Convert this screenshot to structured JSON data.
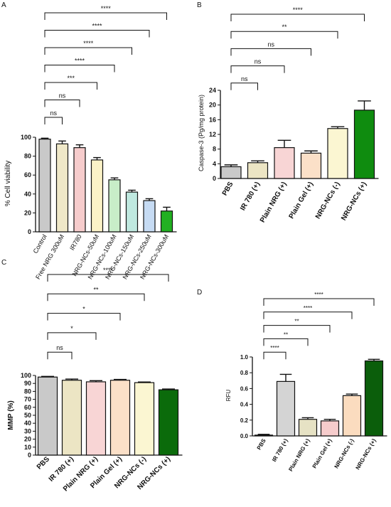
{
  "chart_data": [
    {
      "panel": "A",
      "type": "bar",
      "ylabel": "% Cell viability",
      "ylim": [
        0,
        100
      ],
      "yticks": [
        0,
        20,
        40,
        60,
        80,
        100
      ],
      "categories": [
        "Control",
        "Free NRG 300uM",
        "IR780",
        "NRG-NCs-50uM",
        "NRG-NCs-100uM",
        "NRG-NCs-150uM",
        "NRG-NCs-250uM",
        "NRG-NCs-300uM"
      ],
      "values": [
        98,
        93,
        89,
        76,
        55,
        42,
        33,
        22
      ],
      "errors": [
        1,
        3,
        3,
        2.5,
        2,
        2,
        2,
        4
      ],
      "colors": [
        "#c9c9c9",
        "#efe8c8",
        "#f6cccc",
        "#fbf2c7",
        "#c8edc8",
        "#bfe8df",
        "#c6dbf3",
        "#22b022"
      ],
      "comparisons": [
        {
          "from": 0,
          "to": 1,
          "label": "ns"
        },
        {
          "from": 0,
          "to": 2,
          "label": "ns"
        },
        {
          "from": 0,
          "to": 3,
          "label": "***"
        },
        {
          "from": 0,
          "to": 4,
          "label": "****"
        },
        {
          "from": 0,
          "to": 5,
          "label": "****"
        },
        {
          "from": 0,
          "to": 6,
          "label": "****"
        },
        {
          "from": 0,
          "to": 7,
          "label": "****"
        }
      ]
    },
    {
      "panel": "B",
      "type": "bar",
      "ylabel": "Caspase-3 (Pg/mg protein)",
      "ylim": [
        0,
        24
      ],
      "yticks": [
        0,
        4,
        8,
        12,
        16,
        20,
        24
      ],
      "categories": [
        "PBS",
        "IR 780 (+)",
        "Plain NRG (+)",
        "Plain Gel (+)",
        "NRG-NCs (-)",
        "NRG-NCs (+)"
      ],
      "values": [
        3.2,
        4.3,
        8.4,
        6.9,
        13.6,
        18.6
      ],
      "errors": [
        0.5,
        0.5,
        2.0,
        0.6,
        0.5,
        2.5
      ],
      "colors": [
        "#c9c9c9",
        "#ece5c4",
        "#f8d5d5",
        "#fbe0c8",
        "#fbf6d2",
        "#0f8c0f"
      ],
      "comparisons": [
        {
          "from": 0,
          "to": 1,
          "label": "ns"
        },
        {
          "from": 0,
          "to": 2,
          "label": "ns"
        },
        {
          "from": 0,
          "to": 3,
          "label": "ns"
        },
        {
          "from": 0,
          "to": 4,
          "label": "**"
        },
        {
          "from": 0,
          "to": 5,
          "label": "****"
        }
      ]
    },
    {
      "panel": "C",
      "type": "bar",
      "ylabel": "MMP (%)",
      "ylim": [
        0,
        100
      ],
      "yticks": [
        0,
        10,
        20,
        30,
        40,
        50,
        60,
        70,
        80,
        90,
        100
      ],
      "categories": [
        "PBS",
        "IR 780 (+)",
        "Plain NRG (+)",
        "Plain Gel (+)",
        "NRG-NCs (-)",
        "NRG-NCs (+)"
      ],
      "values": [
        98,
        94,
        92,
        94,
        91,
        82
      ],
      "errors": [
        0.8,
        1.5,
        1.5,
        1,
        0.8,
        1
      ],
      "colors": [
        "#c9c9c9",
        "#ece5c4",
        "#f8d5d5",
        "#fbe0c8",
        "#fbf6d2",
        "#0b6b0b"
      ],
      "comparisons": [
        {
          "from": 0,
          "to": 1,
          "label": "ns"
        },
        {
          "from": 0,
          "to": 2,
          "label": "*"
        },
        {
          "from": 0,
          "to": 3,
          "label": "*"
        },
        {
          "from": 0,
          "to": 4,
          "label": "**"
        },
        {
          "from": 0,
          "to": 5,
          "label": "****"
        }
      ]
    },
    {
      "panel": "D",
      "type": "bar",
      "ylabel": "RFU",
      "ylim": [
        0,
        1.0
      ],
      "yticks": [
        "0.0",
        "0.2",
        "0.4",
        "0.6",
        "0.8",
        "1.0"
      ],
      "categories": [
        "PBS",
        "IR 780 (+)",
        "Plain NRG (+)",
        "Plain Gel (+)",
        "NRG-NCs (-)",
        "NRG-NCs (+)"
      ],
      "values": [
        0.01,
        0.69,
        0.21,
        0.19,
        0.51,
        0.95
      ],
      "errors": [
        0.01,
        0.09,
        0.02,
        0.02,
        0.02,
        0.02
      ],
      "colors": [
        "#c9c9c9",
        "#d4d4d4",
        "#e6e2c4",
        "#f6cccc",
        "#fbdcbf",
        "#0b5e0b"
      ],
      "comparisons": [
        {
          "from": 0,
          "to": 1,
          "label": "****"
        },
        {
          "from": 0,
          "to": 2,
          "label": "**"
        },
        {
          "from": 0,
          "to": 3,
          "label": "**"
        },
        {
          "from": 0,
          "to": 4,
          "label": "****"
        },
        {
          "from": 0,
          "to": 5,
          "label": "****"
        }
      ]
    }
  ]
}
